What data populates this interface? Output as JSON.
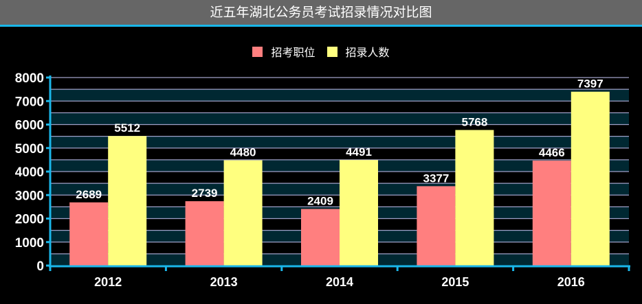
{
  "chart_data": {
    "type": "bar",
    "title": "近五年湖北公务员考试招录情况对比图",
    "categories": [
      "2012",
      "2013",
      "2014",
      "2015",
      "2016"
    ],
    "series": [
      {
        "name": "招考职位",
        "color": "#ff7f7f",
        "values": [
          2689,
          2739,
          2409,
          3377,
          4466
        ]
      },
      {
        "name": "招录人数",
        "color": "#ffff7f",
        "values": [
          5512,
          4480,
          4491,
          5768,
          7397
        ]
      }
    ],
    "ylim": [
      0,
      8000
    ],
    "yticks": [
      0,
      1000,
      2000,
      3000,
      4000,
      5000,
      6000,
      7000,
      8000
    ],
    "grid": true,
    "legend": "top-center",
    "colors": {
      "background": "#000000",
      "band": "#002832",
      "axis": "#1ab7ea",
      "gridline": "#a0a0c8",
      "titlebar": "#666666"
    }
  }
}
